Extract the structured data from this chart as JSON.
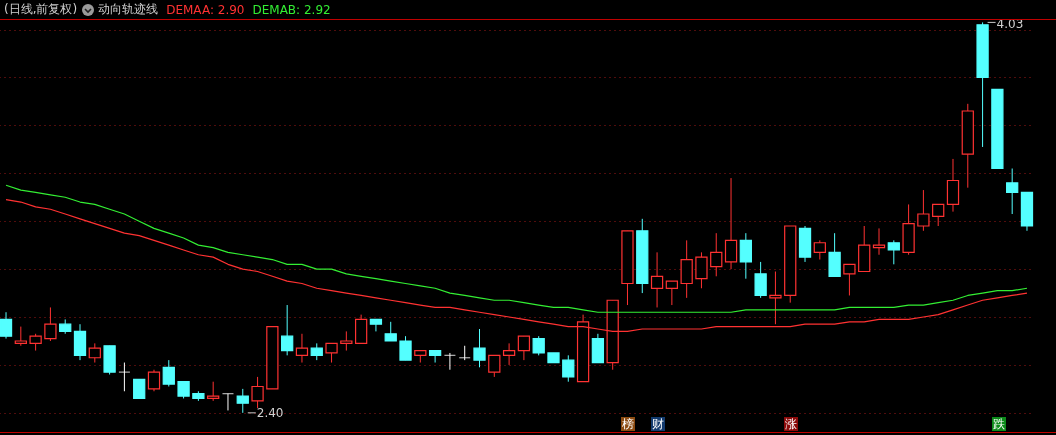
{
  "chart_data": {
    "type": "candlestick",
    "title": "(日线,前复权)",
    "subtitle": "动向轨迹线",
    "categories": [
      null,
      null,
      null,
      null,
      null,
      null,
      null,
      null,
      null,
      null,
      null,
      null,
      null,
      null,
      null,
      null,
      null,
      null,
      null,
      null,
      null,
      null,
      null,
      null,
      null,
      null,
      null,
      null,
      null,
      null,
      null,
      null,
      null,
      null,
      null,
      null,
      null,
      null,
      null,
      null,
      null,
      null,
      null,
      null,
      null,
      null,
      null,
      null,
      null,
      null,
      null,
      null,
      null,
      null,
      null,
      null,
      null,
      null,
      null,
      null,
      null,
      null,
      null,
      null,
      null,
      null,
      null,
      null,
      null,
      null
    ],
    "ohlc": [
      [
        2.79,
        2.82,
        2.71,
        2.72
      ],
      [
        2.69,
        2.76,
        2.68,
        2.7
      ],
      [
        2.69,
        2.73,
        2.66,
        2.72
      ],
      [
        2.71,
        2.84,
        2.7,
        2.77
      ],
      [
        2.77,
        2.79,
        2.73,
        2.74
      ],
      [
        2.74,
        2.77,
        2.62,
        2.64
      ],
      [
        2.63,
        2.69,
        2.61,
        2.67
      ],
      [
        2.68,
        2.68,
        2.56,
        2.57
      ],
      [
        2.57,
        2.61,
        2.49,
        2.57
      ],
      [
        2.54,
        2.54,
        2.46,
        2.46
      ],
      [
        2.5,
        2.58,
        2.49,
        2.57
      ],
      [
        2.59,
        2.62,
        2.51,
        2.52
      ],
      [
        2.53,
        2.53,
        2.46,
        2.47
      ],
      [
        2.48,
        2.49,
        2.45,
        2.46
      ],
      [
        2.46,
        2.53,
        2.45,
        2.47
      ],
      [
        2.48,
        2.48,
        2.41,
        2.48
      ],
      [
        2.47,
        2.5,
        2.4,
        2.44
      ],
      [
        2.45,
        2.55,
        2.42,
        2.51
      ],
      [
        2.5,
        2.76,
        2.5,
        2.76
      ],
      [
        2.72,
        2.85,
        2.64,
        2.66
      ],
      [
        2.64,
        2.73,
        2.61,
        2.67
      ],
      [
        2.67,
        2.69,
        2.62,
        2.64
      ],
      [
        2.65,
        2.69,
        2.61,
        2.69
      ],
      [
        2.69,
        2.74,
        2.66,
        2.7
      ],
      [
        2.69,
        2.81,
        2.69,
        2.79
      ],
      [
        2.79,
        2.79,
        2.74,
        2.77
      ],
      [
        2.73,
        2.78,
        2.7,
        2.7
      ],
      [
        2.7,
        2.72,
        2.62,
        2.62
      ],
      [
        2.64,
        2.66,
        2.61,
        2.66
      ],
      [
        2.66,
        2.66,
        2.61,
        2.64
      ],
      [
        2.64,
        2.65,
        2.58,
        2.64
      ],
      [
        2.63,
        2.68,
        2.62,
        2.63
      ],
      [
        2.67,
        2.75,
        2.59,
        2.62
      ],
      [
        2.57,
        2.64,
        2.55,
        2.64
      ],
      [
        2.64,
        2.69,
        2.6,
        2.66
      ],
      [
        2.66,
        2.72,
        2.62,
        2.72
      ],
      [
        2.71,
        2.72,
        2.64,
        2.65
      ],
      [
        2.65,
        2.65,
        2.61,
        2.61
      ],
      [
        2.62,
        2.64,
        2.53,
        2.55
      ],
      [
        2.53,
        2.81,
        2.53,
        2.78
      ],
      [
        2.71,
        2.73,
        2.61,
        2.61
      ],
      [
        2.61,
        2.87,
        2.58,
        2.87
      ],
      [
        2.94,
        3.16,
        2.85,
        3.16
      ],
      [
        3.16,
        3.21,
        2.9,
        2.94
      ],
      [
        2.92,
        3.07,
        2.84,
        2.97
      ],
      [
        2.92,
        2.95,
        2.85,
        2.95
      ],
      [
        2.94,
        3.12,
        2.88,
        3.04
      ],
      [
        2.96,
        3.07,
        2.92,
        3.05
      ],
      [
        3.01,
        3.15,
        2.97,
        3.07
      ],
      [
        3.03,
        3.38,
        3.0,
        3.12
      ],
      [
        3.12,
        3.15,
        2.96,
        3.03
      ],
      [
        2.98,
        3.03,
        2.88,
        2.89
      ],
      [
        2.88,
        2.99,
        2.77,
        2.89
      ],
      [
        2.89,
        3.18,
        2.86,
        3.18
      ],
      [
        3.17,
        3.18,
        3.03,
        3.05
      ],
      [
        3.07,
        3.12,
        3.04,
        3.11
      ],
      [
        3.07,
        3.15,
        2.97,
        2.97
      ],
      [
        2.98,
        3.02,
        2.89,
        3.02
      ],
      [
        2.99,
        3.18,
        2.99,
        3.1
      ],
      [
        3.09,
        3.17,
        3.06,
        3.1
      ],
      [
        3.11,
        3.12,
        3.02,
        3.08
      ],
      [
        3.07,
        3.27,
        3.06,
        3.19
      ],
      [
        3.18,
        3.33,
        3.16,
        3.23
      ],
      [
        3.22,
        3.27,
        3.18,
        3.27
      ],
      [
        3.27,
        3.46,
        3.24,
        3.37
      ],
      [
        3.48,
        3.69,
        3.34,
        3.66
      ],
      [
        4.02,
        4.03,
        3.51,
        3.8
      ],
      [
        3.75,
        3.75,
        3.42,
        3.42
      ],
      [
        3.36,
        3.42,
        3.23,
        3.32
      ],
      [
        3.32,
        3.32,
        3.16,
        3.18
      ]
    ],
    "colors": [
      "#54ffff",
      "#ff3232",
      "#ff3232",
      "#ff3232",
      "#54ffff",
      "#54ffff",
      "#ff3232",
      "#54ffff",
      "#ffffff",
      "#54ffff",
      "#ff3232",
      "#54ffff",
      "#54ffff",
      "#54ffff",
      "#ff3232",
      "#ffffff",
      "#54ffff",
      "#ff3232",
      "#ff3232",
      "#54ffff",
      "#ff3232",
      "#54ffff",
      "#ff3232",
      "#ff3232",
      "#ff3232",
      "#54ffff",
      "#54ffff",
      "#54ffff",
      "#ff3232",
      "#54ffff",
      "#ffffff",
      "#ffffff",
      "#54ffff",
      "#ff3232",
      "#ff3232",
      "#ff3232",
      "#54ffff",
      "#54ffff",
      "#54ffff",
      "#ff3232",
      "#54ffff",
      "#ff3232",
      "#ff3232",
      "#54ffff",
      "#ff3232",
      "#ff3232",
      "#ff3232",
      "#ff3232",
      "#ff3232",
      "#ff3232",
      "#54ffff",
      "#54ffff",
      "#ff3232",
      "#ff3232",
      "#54ffff",
      "#ff3232",
      "#54ffff",
      "#ff3232",
      "#ff3232",
      "#ff3232",
      "#54ffff",
      "#ff3232",
      "#ff3232",
      "#ff3232",
      "#ff3232",
      "#ff3232",
      "#54ffff",
      "#54ffff",
      "#54ffff",
      "#54ffff"
    ],
    "series": [
      {
        "name": "DEMAA: 2.90",
        "type": "line",
        "color": "#ff3232",
        "values": [
          3.29,
          3.28,
          3.26,
          3.25,
          3.23,
          3.21,
          3.19,
          3.17,
          3.15,
          3.14,
          3.12,
          3.1,
          3.08,
          3.06,
          3.05,
          3.02,
          3.0,
          2.99,
          2.97,
          2.95,
          2.94,
          2.92,
          2.91,
          2.9,
          2.89,
          2.88,
          2.87,
          2.86,
          2.85,
          2.84,
          2.84,
          2.83,
          2.82,
          2.81,
          2.8,
          2.79,
          2.78,
          2.77,
          2.76,
          2.76,
          2.75,
          2.74,
          2.74,
          2.75,
          2.75,
          2.75,
          2.75,
          2.75,
          2.76,
          2.76,
          2.76,
          2.76,
          2.76,
          2.76,
          2.77,
          2.77,
          2.77,
          2.78,
          2.78,
          2.79,
          2.79,
          2.79,
          2.8,
          2.81,
          2.83,
          2.85,
          2.87,
          2.88,
          2.89,
          2.9
        ]
      },
      {
        "name": "DEMAB: 2.92",
        "type": "line",
        "color": "#33ee33",
        "values": [
          3.35,
          3.33,
          3.32,
          3.31,
          3.3,
          3.28,
          3.27,
          3.25,
          3.23,
          3.2,
          3.17,
          3.15,
          3.13,
          3.1,
          3.09,
          3.07,
          3.06,
          3.05,
          3.04,
          3.02,
          3.02,
          3.0,
          3.0,
          2.98,
          2.97,
          2.96,
          2.95,
          2.94,
          2.93,
          2.92,
          2.9,
          2.89,
          2.88,
          2.87,
          2.87,
          2.86,
          2.85,
          2.84,
          2.84,
          2.83,
          2.82,
          2.82,
          2.82,
          2.82,
          2.82,
          2.82,
          2.82,
          2.82,
          2.82,
          2.82,
          2.83,
          2.83,
          2.83,
          2.83,
          2.83,
          2.83,
          2.83,
          2.84,
          2.84,
          2.84,
          2.84,
          2.85,
          2.85,
          2.86,
          2.87,
          2.89,
          2.9,
          2.91,
          2.91,
          2.92
        ]
      }
    ],
    "ylim": [
      2.32,
      4.04
    ],
    "yticks": [
      {
        "value": 2.4,
        "label": null
      },
      {
        "value": 2.6,
        "label": null
      },
      {
        "value": 2.8,
        "label": null
      },
      {
        "value": 3.0,
        "label": null
      },
      {
        "value": 3.2,
        "label": null
      },
      {
        "value": 3.4,
        "label": null
      },
      {
        "value": 3.6,
        "label": null
      },
      {
        "value": 3.8,
        "label": null
      },
      {
        "value": 4.0,
        "label": null
      }
    ],
    "grid": "y",
    "annotations": [
      "4.03",
      "2.40",
      "榜",
      "财",
      "涨",
      "跌"
    ]
  }
}
